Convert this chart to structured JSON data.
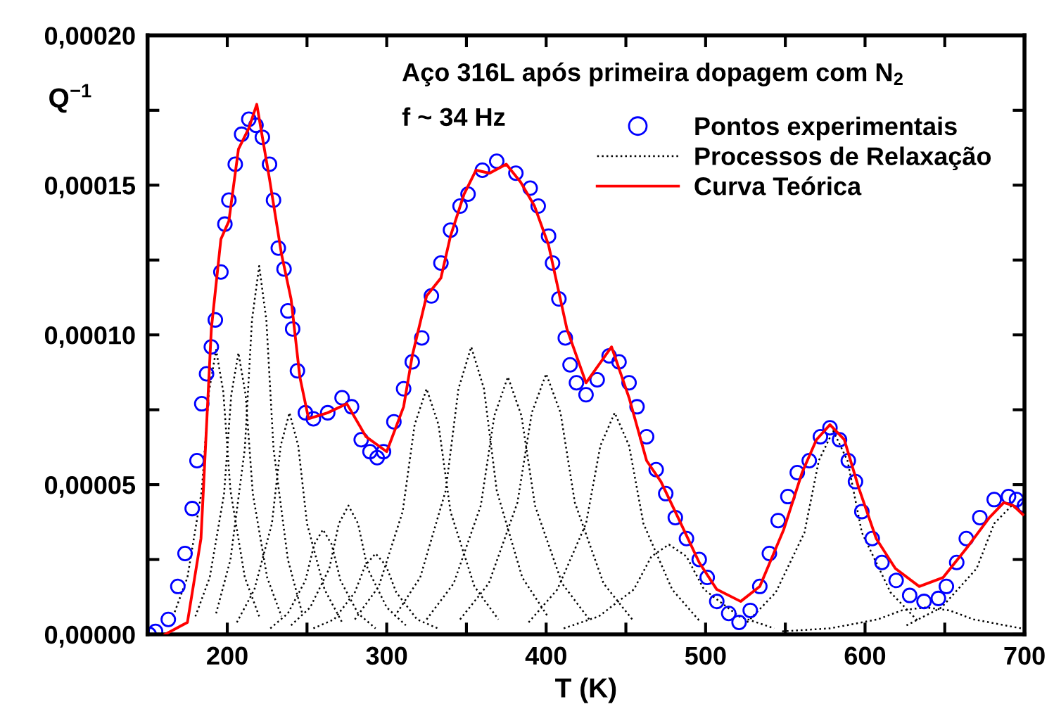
{
  "chart_data": {
    "type": "line",
    "xlabel": "T (K)",
    "ylabel": "Q$^{−1}$",
    "annotations": [
      "Aço 316L após primeira dopagem com N$_{2}$",
      "f ~ 34 Hz"
    ],
    "xlim": [
      150,
      700
    ],
    "ylim": [
      0,
      0.0002
    ],
    "xticks": [
      {
        "value": 200,
        "label": "200"
      },
      {
        "value": 250,
        "label": null
      },
      {
        "value": 300,
        "label": "300"
      },
      {
        "value": 350,
        "label": null
      },
      {
        "value": 400,
        "label": "400"
      },
      {
        "value": 450,
        "label": null
      },
      {
        "value": 500,
        "label": "500"
      },
      {
        "value": 550,
        "label": null
      },
      {
        "value": 600,
        "label": "600"
      },
      {
        "value": 650,
        "label": null
      },
      {
        "value": 700,
        "label": "700"
      }
    ],
    "yticks": [
      {
        "value": 0,
        "label": "0,00000"
      },
      {
        "value": 2.5e-05,
        "label": null
      },
      {
        "value": 5e-05,
        "label": "0,00005"
      },
      {
        "value": 7.5e-05,
        "label": null
      },
      {
        "value": 0.0001,
        "label": "0,00010"
      },
      {
        "value": 0.000125,
        "label": null
      },
      {
        "value": 0.00015,
        "label": "0,00015"
      },
      {
        "value": 0.000175,
        "label": null
      },
      {
        "value": 0.0002,
        "label": "0,00020"
      }
    ],
    "grid": false,
    "legend": "top right",
    "series": [
      {
        "name": "Pontos experimentais",
        "type": "scatter",
        "marker": "circle",
        "color": "#0000ff",
        "x": [
          151,
          155,
          163,
          169,
          173.5,
          178,
          181,
          184,
          187,
          190,
          192.5,
          196,
          198.5,
          201,
          205,
          209,
          213.5,
          218,
          222,
          226.5,
          229,
          232,
          235.6,
          238,
          241,
          244,
          249,
          254,
          263,
          272,
          278,
          284,
          289.5,
          294,
          298,
          304.5,
          310.6,
          316,
          322,
          328,
          334,
          340,
          346,
          351,
          360,
          369,
          381,
          390,
          395,
          401.5,
          404,
          408,
          412,
          415,
          419,
          425,
          432,
          439.5,
          445.7,
          452,
          457,
          463,
          469,
          475,
          481,
          488,
          496,
          501,
          507,
          514.5,
          521,
          528,
          534,
          540,
          545.5,
          551.6,
          557.5,
          565,
          572,
          578,
          584,
          589.5,
          594,
          598,
          604.5,
          610.6,
          619.5,
          628,
          637,
          646,
          651,
          657.5,
          663.5,
          672,
          681,
          690,
          695,
          700
        ],
        "values": [
          0,
          1e-06,
          5e-06,
          1.6e-05,
          2.7e-05,
          4.2e-05,
          5.8e-05,
          7.7e-05,
          8.7e-05,
          9.6e-05,
          0.000105,
          0.000121,
          0.000137,
          0.000145,
          0.000157,
          0.000167,
          0.000172,
          0.00017,
          0.000166,
          0.000157,
          0.000145,
          0.000129,
          0.000122,
          0.000108,
          0.000102,
          8.8e-05,
          7.4e-05,
          7.2e-05,
          7.4e-05,
          7.9e-05,
          7.6e-05,
          6.5e-05,
          6.1e-05,
          5.9e-05,
          6.1e-05,
          7.1e-05,
          8.2e-05,
          9.1e-05,
          9.9e-05,
          0.000113,
          0.000124,
          0.000135,
          0.000143,
          0.000147,
          0.000155,
          0.000158,
          0.000154,
          0.000149,
          0.000143,
          0.000133,
          0.000124,
          0.000112,
          9.9e-05,
          9e-05,
          8.4e-05,
          8e-05,
          8.5e-05,
          9.3e-05,
          9.1e-05,
          8.4e-05,
          7.6e-05,
          6.6e-05,
          5.5e-05,
          4.7e-05,
          3.9e-05,
          3.2e-05,
          2.5e-05,
          1.9e-05,
          1.1e-05,
          7e-06,
          4e-06,
          8e-06,
          1.6e-05,
          2.7e-05,
          3.8e-05,
          4.6e-05,
          5.4e-05,
          5.8e-05,
          6.6e-05,
          6.9e-05,
          6.5e-05,
          5.8e-05,
          5.1e-05,
          4.1e-05,
          3.2e-05,
          2.4e-05,
          1.8e-05,
          1.3e-05,
          1.1e-05,
          1.2e-05,
          1.6e-05,
          2.4e-05,
          3.2e-05,
          3.9e-05,
          4.5e-05,
          4.6e-05,
          4.5e-05,
          4.3e-05
        ]
      },
      {
        "name": "Processos de Relaxação",
        "line_style": "dotted",
        "color": "#000000",
        "x": [
          166,
          175,
          184,
          188.5,
          193,
          197.5,
          202,
          211,
          220
        ],
        "values": [
          6e-06,
          1.9e-05,
          4.8e-05,
          8.1e-05,
          9.5e-05,
          8.1e-05,
          4.8e-05,
          1.9e-05,
          6e-06
        ]
      },
      {
        "line_style": "dotted",
        "color": "#000000",
        "x": [
          180,
          189,
          198,
          202.5,
          207,
          211.5,
          216,
          225,
          234
        ],
        "values": [
          6e-06,
          1.9e-05,
          4.7e-05,
          8e-05,
          9.4e-05,
          8e-05,
          4.7e-05,
          1.9e-05,
          6e-06
        ]
      },
      {
        "line_style": "dotted",
        "color": "#000000",
        "x": [
          193,
          202,
          211,
          215.5,
          220,
          224.5,
          229,
          238,
          247
        ],
        "values": [
          7e-06,
          2.5e-05,
          6.2e-05,
          0.000105,
          0.000123,
          0.000105,
          6.2e-05,
          2.5e-05,
          7e-06
        ]
      },
      {
        "line_style": "dotted",
        "color": "#000000",
        "x": [
          206,
          217,
          228,
          233.5,
          239,
          244.5,
          250,
          261,
          272
        ],
        "values": [
          4e-06,
          1.5e-05,
          3.7e-05,
          6.3e-05,
          7.4e-05,
          6.3e-05,
          3.7e-05,
          1.5e-05,
          4e-06
        ]
      },
      {
        "line_style": "dotted",
        "color": "#000000",
        "x": [
          227,
          238,
          249,
          254.5,
          260,
          265.5,
          271,
          282,
          293
        ],
        "values": [
          2e-06,
          7e-06,
          1.8e-05,
          3e-05,
          3.5e-05,
          3e-05,
          1.8e-05,
          7e-06,
          2e-06
        ]
      },
      {
        "line_style": "dotted",
        "color": "#000000",
        "x": [
          240,
          252,
          264,
          270,
          276,
          282,
          288,
          300,
          312
        ],
        "values": [
          3e-06,
          9e-06,
          2.2e-05,
          3.7e-05,
          4.3e-05,
          3.7e-05,
          2.2e-05,
          9e-06,
          3e-06
        ]
      },
      {
        "line_style": "dotted",
        "color": "#000000",
        "x": [
          254,
          267,
          280,
          286.5,
          293,
          299.5,
          306,
          319,
          332
        ],
        "values": [
          2e-06,
          5e-06,
          1.4e-05,
          2.3e-05,
          2.7e-05,
          2.3e-05,
          1.4e-05,
          5e-06,
          2e-06
        ]
      },
      {
        "line_style": "dotted",
        "color": "#000000",
        "x": [
          280,
          295,
          310,
          317.5,
          325,
          332.5,
          340,
          355,
          370
        ],
        "values": [
          5e-06,
          1.6e-05,
          4.1e-05,
          7e-05,
          8.2e-05,
          7e-05,
          4.1e-05,
          1.6e-05,
          5e-06
        ]
      },
      {
        "line_style": "dotted",
        "color": "#000000",
        "x": [
          305,
          321,
          337,
          345,
          353,
          361,
          369,
          385,
          401
        ],
        "values": [
          6e-06,
          1.9e-05,
          4.8e-05,
          8.2e-05,
          9.6e-05,
          8.2e-05,
          4.8e-05,
          1.9e-05,
          6e-06
        ]
      },
      {
        "line_style": "dotted",
        "color": "#000000",
        "x": [
          325,
          342,
          359,
          367.5,
          376,
          384.5,
          393,
          410,
          427
        ],
        "values": [
          5e-06,
          1.7e-05,
          4.3e-05,
          7.3e-05,
          8.6e-05,
          7.3e-05,
          4.3e-05,
          1.7e-05,
          5e-06
        ]
      },
      {
        "line_style": "dotted",
        "color": "#000000",
        "x": [
          346,
          364,
          382,
          391,
          400,
          409,
          418,
          436,
          454
        ],
        "values": [
          5e-06,
          1.7e-05,
          4.4e-05,
          7.4e-05,
          8.7e-05,
          7.4e-05,
          4.4e-05,
          1.7e-05,
          5e-06
        ]
      },
      {
        "line_style": "dotted",
        "color": "#000000",
        "x": [
          389,
          407,
          425,
          434,
          443,
          452,
          461,
          479,
          497
        ],
        "values": [
          4e-06,
          1.5e-05,
          3.7e-05,
          6.3e-05,
          7.4e-05,
          6.3e-05,
          3.7e-05,
          1.5e-05,
          4e-06
        ]
      },
      {
        "line_style": "dotted",
        "color": "#000000",
        "x": [
          411,
          433,
          455,
          466,
          477,
          488,
          499,
          521,
          543
        ],
        "values": [
          2e-06,
          6e-06,
          1.5e-05,
          2.6e-05,
          3e-05,
          2.6e-05,
          1.5e-05,
          6e-06,
          2e-06
        ]
      },
      {
        "line_style": "dotted",
        "color": "#000000",
        "x": [
          526,
          544,
          562,
          571,
          580,
          589,
          598,
          616,
          634
        ],
        "values": [
          4e-06,
          1.4e-05,
          3.4e-05,
          5.8e-05,
          6.8e-05,
          5.8e-05,
          3.4e-05,
          1.4e-05,
          4e-06
        ]
      },
      {
        "line_style": "dotted",
        "color": "#000000",
        "x": [
          548,
          578,
          608,
          623,
          638,
          653,
          668,
          698
        ],
        "values": [
          1e-06,
          2e-06,
          5e-06,
          8e-06,
          9e-06,
          8e-06,
          5e-06,
          2e-06
        ]
      },
      {
        "line_style": "dotted",
        "color": "#000000",
        "x": [
          626,
          648,
          670,
          681,
          692,
          700
        ],
        "values": [
          3e-06,
          9e-06,
          2.2e-05,
          3.7e-05,
          4.3e-05,
          4e-05
        ]
      },
      {
        "name": "Curva Teórica",
        "line_style": "solid",
        "color": "#ff0000",
        "x": [
          161,
          175,
          183.5,
          190,
          196,
          201,
          207,
          213.5,
          218.5,
          226.5,
          234,
          240,
          245.5,
          251,
          263,
          275,
          287,
          300,
          310.6,
          316,
          325,
          334,
          340,
          348.5,
          356,
          364.5,
          375,
          384,
          392.7,
          401.5,
          413,
          425,
          441,
          452,
          463,
          472,
          483.6,
          496,
          507,
          522,
          534,
          549,
          560.5,
          569.5,
          578,
          587,
          596,
          607,
          619,
          634,
          649,
          664,
          678,
          687,
          693,
          699
        ],
        "values": [
          0,
          4e-06,
          3.2e-05,
          0.000102,
          0.000132,
          0.000138,
          0.000162,
          0.000169,
          0.000177,
          0.000152,
          0.000127,
          0.000112,
          8.6e-05,
          7.2e-05,
          7.4e-05,
          7.7e-05,
          6.6e-05,
          6.1e-05,
          7.6e-05,
          9.3e-05,
          0.000113,
          0.000119,
          0.000133,
          0.000147,
          0.000155,
          0.000154,
          0.000157,
          0.000151,
          0.000143,
          0.00013,
          0.000102,
          8.4e-05,
          9.6e-05,
          7.9e-05,
          5.8e-05,
          5.1e-05,
          3.8e-05,
          2.4e-05,
          1.5e-05,
          1.1e-05,
          1.6e-05,
          3.5e-05,
          5.4e-05,
          6.5e-05,
          7e-05,
          6.5e-05,
          4.9e-05,
          3.2e-05,
          2.2e-05,
          1.6e-05,
          1.9e-05,
          2.9e-05,
          3.9e-05,
          4.4e-05,
          4.3e-05,
          4e-05
        ]
      }
    ]
  }
}
